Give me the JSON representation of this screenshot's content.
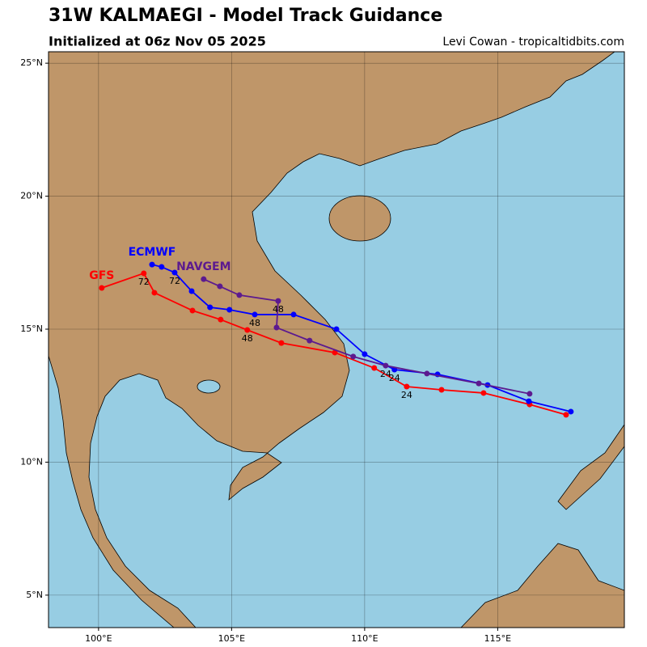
{
  "chart_data": {
    "type": "line",
    "title": "31W KALMAEGI - Model Track Guidance",
    "subtitle": "Initialized at 06z Nov 05 2025",
    "credit": "Levi Cowan - tropicaltidbits.com",
    "xlim": [
      98.12,
      119.76
    ],
    "ylim": [
      3.78,
      25.43
    ],
    "xticks": [
      {
        "value": 100,
        "label": "100°E"
      },
      {
        "value": 105,
        "label": "105°E"
      },
      {
        "value": 110,
        "label": "110°E"
      },
      {
        "value": 115,
        "label": "115°E"
      }
    ],
    "yticks": [
      {
        "value": 5,
        "label": "5°N"
      },
      {
        "value": 10,
        "label": "10°N"
      },
      {
        "value": 15,
        "label": "15°N"
      },
      {
        "value": 20,
        "label": "20°N"
      },
      {
        "value": 25,
        "label": "25°N"
      }
    ],
    "grid": true,
    "series": [
      {
        "name": "GFS",
        "color": "#ff0000",
        "x": [
          117.57,
          116.2,
          114.47,
          112.89,
          111.58,
          110.36,
          108.88,
          106.87,
          105.59,
          104.59,
          103.53,
          102.1,
          101.7,
          100.12
        ],
        "values": [
          11.78,
          12.17,
          12.6,
          12.72,
          12.84,
          13.54,
          14.12,
          14.48,
          14.97,
          15.36,
          15.7,
          16.37,
          17.1,
          16.55
        ],
        "labels": [
          null,
          null,
          null,
          null,
          24,
          null,
          null,
          null,
          48,
          null,
          null,
          null,
          72,
          null
        ]
      },
      {
        "name": "ECMWF",
        "color": "#0000ff",
        "x": [
          117.75,
          116.17,
          114.62,
          112.74,
          111.12,
          110.0,
          108.94,
          107.33,
          105.87,
          104.92,
          104.19,
          103.5,
          102.86,
          102.37,
          102.01
        ],
        "values": [
          11.9,
          12.29,
          12.9,
          13.3,
          13.48,
          14.06,
          15.0,
          15.55,
          15.55,
          15.73,
          15.82,
          16.43,
          17.13,
          17.34,
          17.43
        ],
        "labels": [
          null,
          null,
          null,
          null,
          24,
          null,
          null,
          null,
          48,
          null,
          null,
          null,
          72,
          null,
          null
        ]
      },
      {
        "name": "NAVGEM",
        "color": "#5c1a8f",
        "x": [
          116.2,
          114.29,
          112.34,
          110.79,
          109.57,
          107.93,
          106.69,
          106.75,
          105.29,
          104.56,
          103.95
        ],
        "values": [
          12.57,
          12.96,
          13.33,
          13.63,
          13.97,
          14.57,
          15.06,
          16.06,
          16.28,
          16.61,
          16.88
        ],
        "labels": [
          null,
          null,
          null,
          24,
          null,
          null,
          null,
          48,
          null,
          null,
          null
        ]
      }
    ]
  }
}
